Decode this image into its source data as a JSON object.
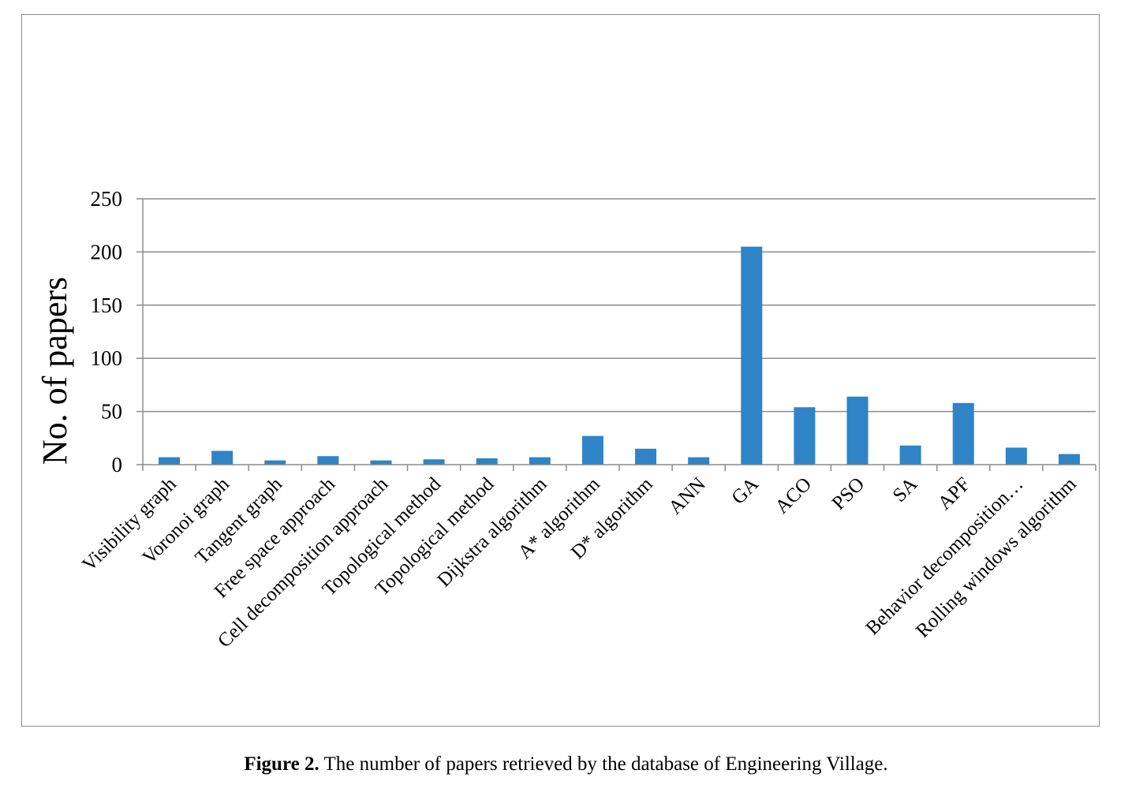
{
  "caption": {
    "label": "Figure 2.",
    "text": "The number of papers retrieved by the database of Engineering Village."
  },
  "chart_data": {
    "type": "bar",
    "title": "",
    "xlabel": "",
    "ylabel": "No. of papers",
    "ylim": [
      0,
      250
    ],
    "yticks": [
      "0",
      "50",
      "100",
      "150",
      "200",
      "250"
    ],
    "grid": true,
    "bar_color": "#2e84c6",
    "categories": [
      "Visibility graph",
      "Voronoi graph",
      "Tangent graph",
      "Free space approach",
      "Cell decomposition approach",
      "Topological method",
      "Topological method",
      "Dijkstra algorithm",
      "A* algorithm",
      "D* algorithm",
      "ANN",
      "GA",
      "ACO",
      "PSO",
      "SA",
      "APF",
      "Behavior decomposition…",
      "Rolling windows algorithm"
    ],
    "values": [
      7,
      13,
      4,
      8,
      4,
      5,
      6,
      7,
      27,
      15,
      7,
      205,
      54,
      64,
      18,
      58,
      16,
      10
    ]
  }
}
